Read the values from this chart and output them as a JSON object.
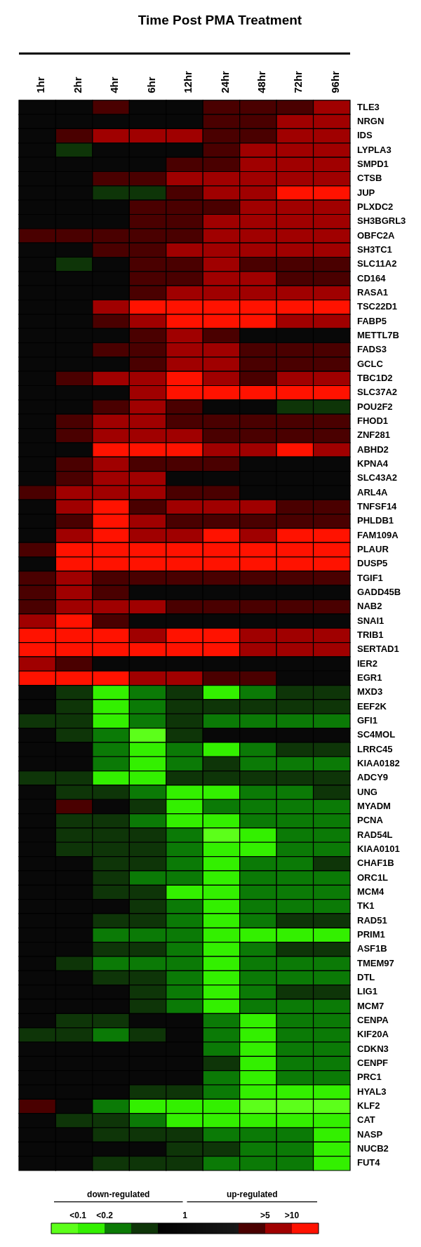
{
  "chart_data": {
    "type": "heatmap",
    "title": "Time Post PMA Treatment",
    "categories": [
      "1hr",
      "2hr",
      "4hr",
      "6hr",
      "12hr",
      "24hr",
      "48hr",
      "72hr",
      "96hr"
    ],
    "y_categories": [
      "TLE3",
      "NRGN",
      "IDS",
      "LYPLA3",
      "SMPD1",
      "CTSB",
      "JUP",
      "PLXDC2",
      "SH3BGRL3",
      "OBFC2A",
      "SH3TC1",
      "SLC11A2",
      "CD164",
      "RASA1",
      "TSC22D1",
      "FABP5",
      "METTL7B",
      "FADS3",
      "GCLC",
      "TBC1D2",
      "SLC37A2",
      "POU2F2",
      "FHOD1",
      "ZNF281",
      "ABHD2",
      "KPNA4",
      "SLC43A2",
      "ARL4A",
      "TNFSF14",
      "PHLDB1",
      "FAM109A",
      "PLAUR",
      "DUSP5",
      "TGIF1",
      "GADD45B",
      "NAB2",
      "SNAI1",
      "TRIB1",
      "SERTAD1",
      "IER2",
      "EGR1",
      "MXD3",
      "EEF2K",
      "GFI1",
      "SC4MOL",
      "LRRC45",
      "KIAA0182",
      "ADCY9",
      "UNG",
      "MYADM",
      "PCNA",
      "RAD54L",
      "KIAA0101",
      "CHAF1B",
      "ORC1L",
      "MCM4",
      "TK1",
      "RAD51",
      "PRIM1",
      "ASF1B",
      "TMEM97",
      "DTL",
      "LIG1",
      "MCM7",
      "CENPA",
      "KIF20A",
      "CDKN3",
      "CENPF",
      "PRC1",
      "HYAL3",
      "KLF2",
      "CAT",
      "NASP",
      "NUCB2",
      "FUT4"
    ],
    "cells": [
      [
        1,
        1,
        3.5,
        1,
        1,
        3.5,
        3.5,
        3.5,
        4.5
      ],
      [
        1,
        1,
        1,
        1,
        1,
        3.5,
        3.5,
        4.5,
        4.5
      ],
      [
        1,
        3.5,
        4.5,
        4.5,
        4.5,
        3.5,
        3.5,
        4.5,
        4.5
      ],
      [
        1,
        -0.5,
        1,
        1,
        1,
        3.5,
        4.5,
        4.5,
        4.5
      ],
      [
        1,
        1,
        1,
        1,
        3.5,
        3.5,
        4.5,
        4.5,
        4.5
      ],
      [
        1,
        1,
        3.5,
        3.5,
        4.5,
        4.5,
        4.5,
        4.5,
        4.5
      ],
      [
        1,
        1,
        -0.5,
        -0.5,
        3.5,
        4.5,
        4.5,
        5.5,
        5.5
      ],
      [
        1,
        1,
        1,
        3.5,
        3.5,
        3.5,
        4.5,
        4.5,
        4.5
      ],
      [
        1,
        1,
        1,
        3.5,
        3.5,
        4.5,
        4.5,
        4.5,
        4.5
      ],
      [
        3.5,
        3.5,
        3.5,
        3.5,
        3.5,
        4.5,
        4.5,
        4.5,
        4.5
      ],
      [
        1,
        1,
        3.5,
        3.5,
        4.5,
        4.5,
        4.5,
        4.5,
        4.5
      ],
      [
        1,
        -0.5,
        1,
        3.5,
        3.5,
        4.5,
        3.5,
        3.5,
        3.5
      ],
      [
        1,
        1,
        1,
        3.5,
        3.5,
        4.5,
        4.5,
        3.5,
        3.5
      ],
      [
        1,
        1,
        1,
        3.5,
        4.5,
        4.5,
        4.5,
        4.5,
        4.5
      ],
      [
        1,
        1,
        4.5,
        5.5,
        5.5,
        5.5,
        5.5,
        5.5,
        5.5
      ],
      [
        1,
        1,
        3.5,
        4.5,
        5.5,
        5.5,
        5.5,
        4.5,
        4.5
      ],
      [
        1,
        1,
        1,
        3.5,
        4.5,
        3.5,
        1,
        1,
        1
      ],
      [
        1,
        1,
        3.5,
        3.5,
        4.5,
        4.5,
        3.5,
        3.5,
        3.5
      ],
      [
        1,
        1,
        1,
        3.5,
        4.5,
        4.5,
        3.5,
        3.5,
        3.5
      ],
      [
        1,
        3.5,
        4.5,
        4.5,
        5.5,
        4.5,
        3.5,
        4.5,
        4.5
      ],
      [
        1,
        1,
        1,
        4.5,
        5.5,
        5.5,
        5.5,
        5.5,
        5.5
      ],
      [
        1,
        1,
        3.5,
        4.5,
        3.5,
        1,
        1,
        -0.5,
        -0.5
      ],
      [
        1,
        3.5,
        4.5,
        4.5,
        3.5,
        3.5,
        3.5,
        3.5,
        3.5
      ],
      [
        1,
        3.5,
        4.5,
        4.5,
        4.5,
        3.5,
        3.5,
        3.5,
        3.5
      ],
      [
        1,
        1,
        5.5,
        5.5,
        5.5,
        4.5,
        4.5,
        5.5,
        4.5
      ],
      [
        1,
        3.5,
        4.5,
        3.5,
        3.5,
        3.5,
        1,
        1,
        1
      ],
      [
        1,
        3.5,
        4.5,
        4.5,
        1,
        1,
        1,
        1,
        1
      ],
      [
        3.5,
        4.5,
        4.5,
        4.5,
        3.5,
        3.5,
        1,
        1,
        1
      ],
      [
        1,
        4.5,
        5.5,
        3.5,
        4.5,
        4.5,
        4.5,
        3.5,
        3.5
      ],
      [
        1,
        3.5,
        5.5,
        4.5,
        3.5,
        3.5,
        3.5,
        3.5,
        3.5
      ],
      [
        1,
        4.5,
        5.5,
        4.5,
        4.5,
        5.5,
        4.5,
        5.5,
        5.5
      ],
      [
        3.5,
        5.5,
        5.5,
        5.5,
        5.5,
        5.5,
        5.5,
        5.5,
        5.5
      ],
      [
        1,
        5.5,
        5.5,
        5.5,
        5.5,
        5.5,
        5.5,
        5.5,
        5.5
      ],
      [
        3.5,
        4.5,
        3.5,
        3.5,
        3.5,
        3.5,
        3.5,
        3.5,
        3.5
      ],
      [
        3.5,
        4.5,
        3.5,
        1,
        1,
        1,
        1,
        1,
        1
      ],
      [
        3.5,
        4.5,
        4.5,
        4.5,
        3.5,
        3.5,
        3.5,
        3.5,
        3.5
      ],
      [
        4.5,
        5.5,
        3.5,
        1,
        1,
        1,
        1,
        1,
        1
      ],
      [
        5.5,
        5.5,
        5.5,
        4.5,
        5.5,
        5.5,
        4.5,
        4.5,
        4.5
      ],
      [
        5.5,
        5.5,
        5.5,
        5.5,
        5.5,
        5.5,
        4.5,
        4.5,
        4.5
      ],
      [
        4.5,
        3.5,
        1,
        1,
        1,
        1,
        1,
        1,
        1
      ],
      [
        5.5,
        5.5,
        5.5,
        4.5,
        4.5,
        3.5,
        3.5,
        1,
        1
      ],
      [
        1,
        -0.5,
        -2.5,
        -1.5,
        -0.5,
        -2.5,
        -1.5,
        -0.5,
        -0.5
      ],
      [
        1,
        -0.5,
        -2.5,
        -1.5,
        -0.5,
        -0.5,
        -0.5,
        -0.5,
        -0.5
      ],
      [
        -0.5,
        -0.5,
        -2.5,
        -1.5,
        -0.5,
        -1.5,
        -1.5,
        -1.5,
        -1.5
      ],
      [
        1,
        -0.5,
        -1.5,
        -3.5,
        -0.5,
        1,
        1,
        1,
        1
      ],
      [
        1,
        1,
        -1.5,
        -2.5,
        -1.5,
        -2.5,
        -1.5,
        -0.5,
        -0.5
      ],
      [
        1,
        1,
        -1.5,
        -2.5,
        -1.5,
        -0.5,
        -1.5,
        -1.5,
        -1.5
      ],
      [
        -0.5,
        -0.5,
        -2.5,
        -2.5,
        -0.5,
        -0.5,
        -0.5,
        -0.5,
        -0.5
      ],
      [
        1,
        -0.5,
        -0.5,
        -1.5,
        -2.5,
        -2.5,
        -1.5,
        -1.5,
        -0.5
      ],
      [
        1,
        3.5,
        1,
        -0.5,
        -2.5,
        -1.5,
        -1.5,
        -1.5,
        -1.5
      ],
      [
        1,
        -0.5,
        -0.5,
        -1.5,
        -2.5,
        -2.5,
        -1.5,
        -1.5,
        -1.5
      ],
      [
        1,
        -0.5,
        -0.5,
        -0.5,
        -1.5,
        -3.5,
        -2.5,
        -1.5,
        -1.5
      ],
      [
        1,
        -0.5,
        -0.5,
        -0.5,
        -1.5,
        -2.5,
        -2.5,
        -1.5,
        -1.5
      ],
      [
        1,
        1,
        -0.5,
        -0.5,
        -1.5,
        -2.5,
        -1.5,
        -1.5,
        -0.5
      ],
      [
        1,
        1,
        -0.5,
        -1.5,
        -1.5,
        -2.5,
        -1.5,
        -1.5,
        -1.5
      ],
      [
        1,
        1,
        -0.5,
        -0.5,
        -2.5,
        -2.5,
        -1.5,
        -1.5,
        -1.5
      ],
      [
        1,
        1,
        1,
        -0.5,
        -1.5,
        -2.5,
        -1.5,
        -1.5,
        -1.5
      ],
      [
        1,
        1,
        -0.5,
        -0.5,
        -1.5,
        -2.5,
        -1.5,
        -0.5,
        -0.5
      ],
      [
        1,
        1,
        -1.5,
        -1.5,
        -1.5,
        -2.5,
        -2.5,
        -2.5,
        -2.5
      ],
      [
        1,
        1,
        -0.5,
        -0.5,
        -1.5,
        -2.5,
        -1.5,
        -0.5,
        -0.5
      ],
      [
        1,
        -0.5,
        -1.5,
        -1.5,
        -1.5,
        -2.5,
        -1.5,
        -1.5,
        -1.5
      ],
      [
        1,
        1,
        -0.5,
        -0.5,
        -1.5,
        -2.5,
        -1.5,
        -1.5,
        -1.5
      ],
      [
        1,
        1,
        1,
        -0.5,
        -1.5,
        -2.5,
        -1.5,
        -0.5,
        -0.5
      ],
      [
        1,
        1,
        1,
        -0.5,
        -1.5,
        -2.5,
        -1.5,
        -1.5,
        -1.5
      ],
      [
        1,
        -0.5,
        -0.5,
        1,
        1,
        -1.5,
        -2.5,
        -1.5,
        -1.5
      ],
      [
        -0.5,
        -0.5,
        -1.5,
        -0.5,
        1,
        -1.5,
        -2.5,
        -1.5,
        -1.5
      ],
      [
        1,
        1,
        1,
        1,
        1,
        -1.5,
        -2.5,
        -1.5,
        -1.5
      ],
      [
        1,
        1,
        1,
        1,
        1,
        -0.5,
        -2.5,
        -1.5,
        -1.5
      ],
      [
        1,
        1,
        1,
        1,
        1,
        -1.5,
        -2.5,
        -1.5,
        -1.5
      ],
      [
        1,
        1,
        1,
        -0.5,
        -0.5,
        -1.5,
        -2.5,
        -2.5,
        -2.5
      ],
      [
        3.5,
        1,
        -1.5,
        -2.5,
        -2.5,
        -2.5,
        -3.5,
        -3.5,
        -3.5
      ],
      [
        1,
        -0.5,
        -0.5,
        -1.5,
        -2.5,
        -2.5,
        -2.5,
        -2.5,
        -2.5
      ],
      [
        1,
        1,
        -0.5,
        -0.5,
        -0.5,
        -1.5,
        -1.5,
        -1.5,
        -2.5
      ],
      [
        1,
        1,
        1,
        1,
        -0.5,
        -0.5,
        -1.5,
        -1.5,
        -2.5
      ],
      [
        1,
        1,
        -0.5,
        -0.5,
        -0.5,
        -1.5,
        -1.5,
        -1.5,
        -2.5
      ]
    ],
    "clim": [
      -4,
      6
    ],
    "cticks": [
      {
        "value": -3,
        "label": "<0.1"
      },
      {
        "value": -2,
        "label": "<0.2"
      },
      1,
      {
        "value": 4,
        "label": ">5"
      },
      {
        "value": 5,
        "label": ">10"
      }
    ],
    "annotations": [
      "down-regulated",
      "up-regulated"
    ]
  }
}
